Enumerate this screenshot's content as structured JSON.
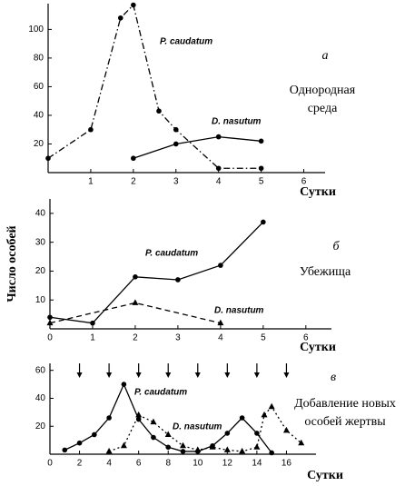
{
  "chart_data": [
    {
      "type": "line",
      "panel_letter": "а",
      "annotation_lines": [
        "Однородная",
        "среда"
      ],
      "x_label": "Сутки",
      "xlim": [
        0,
        6.5
      ],
      "ylim": [
        0,
        118
      ],
      "xticks": [
        1,
        2,
        3,
        4,
        5,
        6
      ],
      "yticks": [
        20,
        40,
        60,
        80,
        100
      ],
      "series": [
        {
          "name": "P. caudatum",
          "color": "#000000",
          "line_style": "dashdot",
          "marker": "circle",
          "x": [
            0,
            1,
            1.7,
            2,
            2.6,
            3,
            4,
            5
          ],
          "values": [
            10,
            30,
            108,
            117,
            43,
            30,
            3,
            3
          ]
        },
        {
          "name": "D. nasutum",
          "color": "#000000",
          "line_style": "solid",
          "marker": "circle",
          "x": [
            2,
            3,
            4,
            5
          ],
          "values": [
            10,
            20,
            25,
            22
          ]
        }
      ]
    },
    {
      "type": "line",
      "panel_letter": "б",
      "annotation_lines": [
        "Убежища"
      ],
      "x_label": "Сутки",
      "y_label": "Число особей",
      "xlim": [
        0,
        6.6
      ],
      "ylim": [
        0,
        45
      ],
      "xticks": [
        0,
        1,
        2,
        3,
        4,
        5,
        6
      ],
      "yticks": [
        10,
        20,
        30,
        40
      ],
      "series": [
        {
          "name": "P. caudatum",
          "color": "#000000",
          "line_style": "solid",
          "marker": "circle",
          "x": [
            0,
            1,
            2,
            3,
            4,
            5
          ],
          "values": [
            4,
            2,
            18,
            17,
            22,
            37
          ]
        },
        {
          "name": "D. nasutum",
          "color": "#000000",
          "line_style": "dashed",
          "marker": "triangle",
          "x": [
            0,
            2,
            4
          ],
          "values": [
            2,
            9,
            2
          ]
        }
      ]
    },
    {
      "type": "line",
      "panel_letter": "в",
      "annotation_lines": [
        "Добавление новых",
        "особей жертвы"
      ],
      "x_label": "Сутки",
      "xlim": [
        0,
        18
      ],
      "ylim": [
        0,
        65
      ],
      "xticks": [
        0,
        2,
        4,
        6,
        8,
        10,
        12,
        14,
        16
      ],
      "yticks": [
        20,
        40,
        60
      ],
      "prey_added_days": [
        2,
        4,
        6,
        8,
        10,
        12,
        14,
        16
      ],
      "series": [
        {
          "name": "P. caudatum",
          "color": "#000000",
          "line_style": "solid",
          "marker": "circle",
          "x": [
            1,
            2,
            3,
            4,
            5,
            6,
            7,
            8,
            9,
            10,
            11,
            12,
            13,
            14,
            15
          ],
          "values": [
            3,
            8,
            14,
            26,
            50,
            25,
            12,
            5,
            2,
            2,
            6,
            15,
            26,
            15,
            1
          ]
        },
        {
          "name": "D. nasutum",
          "color": "#000000",
          "line_style": "dotted",
          "marker": "triangle",
          "x": [
            4,
            5,
            6,
            7,
            8,
            9,
            10,
            11,
            12,
            13,
            14,
            14.5,
            15,
            16,
            17
          ],
          "values": [
            2,
            6,
            28,
            23,
            14,
            6,
            3,
            5,
            3,
            2,
            5,
            28,
            34,
            17,
            8
          ]
        }
      ]
    }
  ]
}
